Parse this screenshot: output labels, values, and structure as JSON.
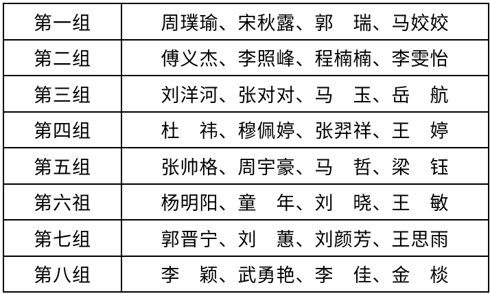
{
  "table": {
    "rows": [
      {
        "group": "第一组",
        "members": "周璞瑜、宋秋露、郭　瑞、马姣姣"
      },
      {
        "group": "第二组",
        "members": "傅义杰、李照峰、程楠楠、李雯怡"
      },
      {
        "group": "第三组",
        "members": "刘洋河、张对对、马　玉、岳　航"
      },
      {
        "group": "第四组",
        "members": "杜　祎、穆佩婷、张羿祥、王　婷"
      },
      {
        "group": "第五组",
        "members": "张帅格、周宇豪、马　哲、梁　钰"
      },
      {
        "group": "第六祖",
        "members": "杨明阳、童　年、刘　晓、王　敏"
      },
      {
        "group": "第七组",
        "members": "郭晋宁、刘　蕙、刘颜芳、王思雨"
      },
      {
        "group": "第八组",
        "members": "李　颖、武勇艳、李　佳、金　棪"
      }
    ],
    "border_color": "#000000",
    "text_color": "#000000",
    "background_color": "#ffffff"
  }
}
